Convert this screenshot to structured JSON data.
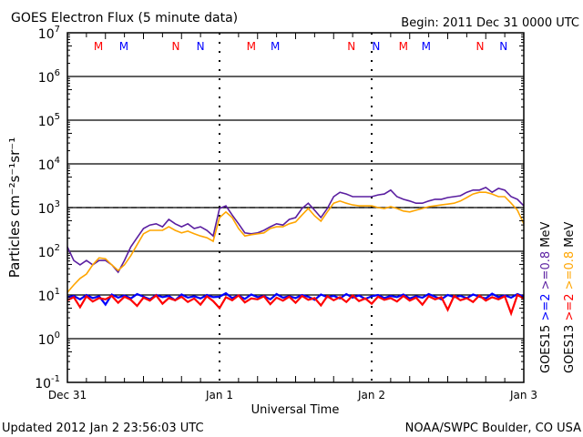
{
  "chart_data": {
    "type": "line",
    "title": "GOES Electron Flux (5 minute data)",
    "begin_label": "Begin: 2011 Dec 31 0000 UTC",
    "xlabel": "Universal Time",
    "ylabel": "Particles cm⁻²s⁻¹sr⁻¹",
    "x_tick_labels": [
      "Dec 31",
      "Jan 1",
      "Jan 2",
      "Jan 3"
    ],
    "x_range_hours": [
      0,
      72
    ],
    "y_scale": "log",
    "ylim": [
      0.1,
      10000000
    ],
    "y_tick_labels": [
      {
        "base": "10",
        "exp": "7"
      },
      {
        "base": "10",
        "exp": "6"
      },
      {
        "base": "10",
        "exp": "5"
      },
      {
        "base": "10",
        "exp": "4"
      },
      {
        "base": "10",
        "exp": "3"
      },
      {
        "base": "10",
        "exp": "2"
      },
      {
        "base": "10",
        "exp": "1"
      },
      {
        "base": "10",
        "exp": "0"
      },
      {
        "base": "10",
        "exp": "-1"
      }
    ],
    "threshold": 1000,
    "sample_interval_hours": 1,
    "series": [
      {
        "name": "GOES15 >=0.8 MeV",
        "satellite": "GOES15",
        "energy": ">=0.8 MeV",
        "color": "#5a1ea0",
        "log10_values": [
          2.1,
          1.79,
          1.69,
          1.79,
          1.69,
          1.79,
          1.79,
          1.69,
          1.52,
          1.79,
          2.1,
          2.31,
          2.52,
          2.6,
          2.63,
          2.56,
          2.73,
          2.63,
          2.56,
          2.63,
          2.52,
          2.56,
          2.48,
          2.35,
          2.98,
          3.04,
          2.83,
          2.63,
          2.42,
          2.4,
          2.42,
          2.48,
          2.56,
          2.63,
          2.6,
          2.73,
          2.77,
          2.98,
          3.1,
          2.94,
          2.77,
          2.98,
          3.25,
          3.35,
          3.31,
          3.25,
          3.25,
          3.25,
          3.25,
          3.29,
          3.31,
          3.4,
          3.25,
          3.19,
          3.15,
          3.1,
          3.1,
          3.15,
          3.19,
          3.19,
          3.23,
          3.25,
          3.27,
          3.35,
          3.4,
          3.4,
          3.46,
          3.35,
          3.44,
          3.4,
          3.25,
          3.19,
          3.04
        ]
      },
      {
        "name": "GOES13 >=0.8 MeV",
        "satellite": "GOES13",
        "energy": ">=0.8 MeV",
        "color": "#ffa500",
        "log10_values": [
          1.06,
          1.23,
          1.38,
          1.48,
          1.69,
          1.85,
          1.83,
          1.69,
          1.56,
          1.69,
          1.9,
          2.15,
          2.4,
          2.48,
          2.48,
          2.48,
          2.56,
          2.48,
          2.42,
          2.46,
          2.4,
          2.35,
          2.31,
          2.23,
          2.77,
          2.9,
          2.77,
          2.52,
          2.35,
          2.38,
          2.4,
          2.42,
          2.52,
          2.56,
          2.56,
          2.63,
          2.67,
          2.83,
          2.98,
          2.81,
          2.69,
          2.9,
          3.1,
          3.15,
          3.1,
          3.06,
          3.04,
          3.04,
          3.04,
          3.0,
          2.98,
          3.02,
          2.98,
          2.92,
          2.9,
          2.94,
          2.98,
          3.02,
          3.04,
          3.06,
          3.08,
          3.1,
          3.15,
          3.23,
          3.31,
          3.35,
          3.35,
          3.31,
          3.25,
          3.25,
          3.1,
          2.94,
          2.63
        ]
      },
      {
        "name": "GOES15 >=2 MeV",
        "satellite": "GOES15",
        "energy": ">=2 MeV",
        "color": "#0000ff",
        "log10_values": [
          0.95,
          0.98,
          0.9,
          1.0,
          0.93,
          0.97,
          0.78,
          1.01,
          0.94,
          0.99,
          0.92,
          1.02,
          0.96,
          0.9,
          1.0,
          0.95,
          0.98,
          0.88,
          1.01,
          0.94,
          0.97,
          0.92,
          1.0,
          0.95,
          0.96,
          1.04,
          0.93,
          0.99,
          0.91,
          1.01,
          0.95,
          0.98,
          0.9,
          1.02,
          0.94,
          0.97,
          0.93,
          1.0,
          0.96,
          0.89,
          1.01,
          0.95,
          0.98,
          0.92,
          1.02,
          0.94,
          0.99,
          0.91,
          0.97,
          1.0,
          0.93,
          0.98,
          0.95,
          1.01,
          0.92,
          0.97,
          0.94,
          1.02,
          0.96,
          0.9,
          1.0,
          0.95,
          0.98,
          0.93,
          1.01,
          0.96,
          0.92,
          1.03,
          0.95,
          0.99,
          0.94,
          1.02,
          0.96
        ]
      },
      {
        "name": "GOES13 >=2 MeV",
        "satellite": "GOES13",
        "energy": ">=2 MeV",
        "color": "#ff0000",
        "log10_values": [
          0.88,
          0.95,
          0.72,
          0.97,
          0.85,
          0.93,
          0.9,
          0.98,
          0.82,
          0.96,
          0.89,
          0.75,
          0.94,
          0.87,
          0.99,
          0.8,
          0.93,
          0.88,
          0.96,
          0.84,
          0.92,
          0.78,
          0.97,
          0.86,
          0.7,
          0.95,
          0.88,
          0.99,
          0.83,
          0.92,
          0.9,
          0.97,
          0.79,
          0.94,
          0.87,
          0.96,
          0.82,
          0.98,
          0.89,
          0.93,
          0.76,
          0.97,
          0.88,
          0.95,
          0.84,
          0.99,
          0.86,
          0.92,
          0.8,
          0.96,
          0.89,
          0.93,
          0.85,
          0.98,
          0.87,
          0.94,
          0.78,
          0.97,
          0.9,
          0.95,
          0.66,
          0.98,
          0.88,
          0.93,
          0.84,
          0.99,
          0.87,
          0.95,
          0.9,
          0.97,
          0.58,
          1.0,
          0.92
        ]
      }
    ],
    "markers": [
      {
        "label": "M",
        "satellite": "GOES13",
        "hour": 4.9,
        "color": "#ff0000"
      },
      {
        "label": "M",
        "satellite": "GOES15",
        "hour": 8.9,
        "color": "#0000ff"
      },
      {
        "label": "N",
        "satellite": "GOES13",
        "hour": 17.1,
        "color": "#ff0000"
      },
      {
        "label": "N",
        "satellite": "GOES15",
        "hour": 21.0,
        "color": "#0000ff"
      },
      {
        "label": "M",
        "satellite": "GOES13",
        "hour": 29.0,
        "color": "#ff0000"
      },
      {
        "label": "M",
        "satellite": "GOES15",
        "hour": 32.8,
        "color": "#0000ff"
      },
      {
        "label": "N",
        "satellite": "GOES13",
        "hour": 44.8,
        "color": "#ff0000"
      },
      {
        "label": "N",
        "satellite": "GOES15",
        "hour": 48.7,
        "color": "#0000ff"
      },
      {
        "label": "M",
        "satellite": "GOES13",
        "hour": 53.0,
        "color": "#ff0000"
      },
      {
        "label": "M",
        "satellite": "GOES15",
        "hour": 56.6,
        "color": "#0000ff"
      },
      {
        "label": "N",
        "satellite": "GOES13",
        "hour": 65.1,
        "color": "#ff0000"
      },
      {
        "label": "N",
        "satellite": "GOES15",
        "hour": 68.8,
        "color": "#0000ff"
      }
    ],
    "legend": {
      "placement": "right",
      "rows": [
        {
          "sat": "GOES15",
          "low": ">=2",
          "high": ">=0.8",
          "unit": "MeV",
          "low_color": "#0000ff",
          "high_color": "#5a1ea0"
        },
        {
          "sat": "GOES13",
          "low": ">=2",
          "high": ">=0.8",
          "unit": "MeV",
          "low_color": "#ff0000",
          "high_color": "#ffa500"
        }
      ]
    }
  },
  "footer": {
    "updated": "Updated 2012 Jan  2 23:56:03 UTC",
    "source": "NOAA/SWPC Boulder, CO USA"
  }
}
